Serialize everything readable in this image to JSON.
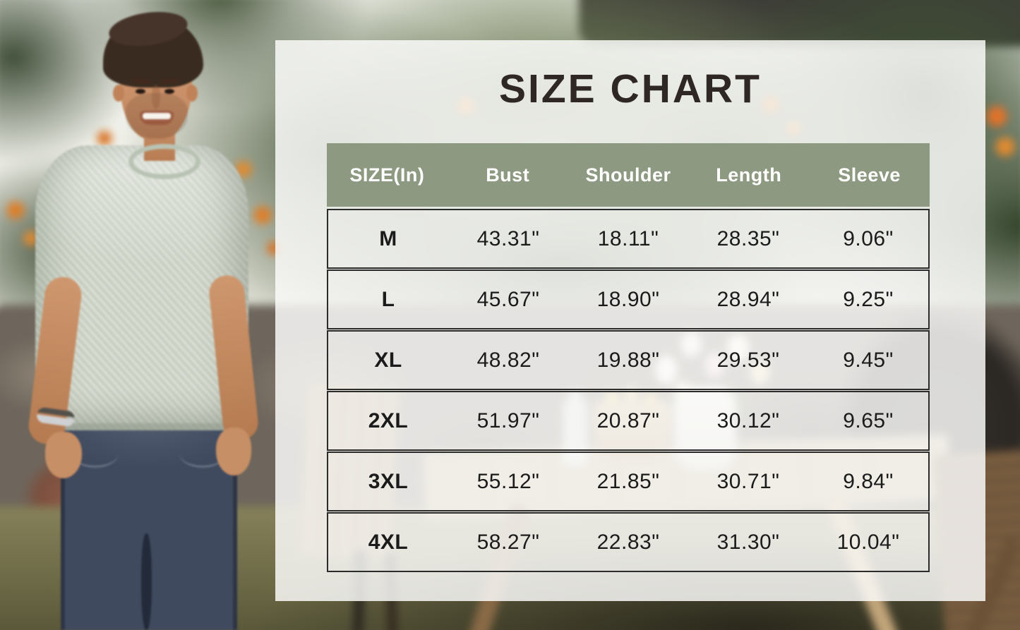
{
  "chart_data": {
    "type": "table",
    "title": "SIZE CHART",
    "columns": [
      "SIZE(In)",
      "Bust",
      "Shoulder",
      "Length",
      "Sleeve"
    ],
    "rows": [
      {
        "size": "M",
        "bust": "43.31\"",
        "shoulder": "18.11\"",
        "length": "28.35\"",
        "sleeve": "9.06\""
      },
      {
        "size": "L",
        "bust": "45.67\"",
        "shoulder": "18.90\"",
        "length": "28.94\"",
        "sleeve": "9.25\""
      },
      {
        "size": "XL",
        "bust": "48.82\"",
        "shoulder": "19.88\"",
        "length": "29.53\"",
        "sleeve": "9.45\""
      },
      {
        "size": "2XL",
        "bust": "51.97\"",
        "shoulder": "20.87\"",
        "length": "30.12\"",
        "sleeve": "9.65\""
      },
      {
        "size": "3XL",
        "bust": "55.12\"",
        "shoulder": "21.85\"",
        "length": "30.71\"",
        "sleeve": "9.84\""
      },
      {
        "size": "4XL",
        "bust": "58.27\"",
        "shoulder": "22.83\"",
        "length": "31.30\"",
        "sleeve": "10.04\""
      }
    ],
    "legend_position": "none",
    "grid": "row-borders"
  },
  "colors": {
    "header_bg": "#8d9a81",
    "title_text": "#2e2724",
    "body_text": "#1b1b1b",
    "row_border": "#2b2b2b",
    "panel_overlay": "rgba(252,252,250,0.84)"
  }
}
